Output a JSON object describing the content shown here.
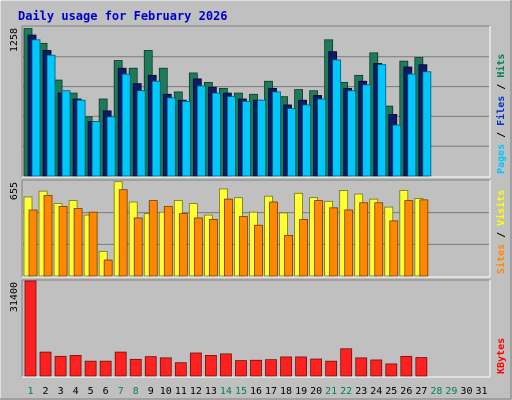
{
  "chart_data": {
    "type": "bar",
    "title": "Daily usage for February 2026",
    "days": [
      "1",
      "2",
      "3",
      "4",
      "5",
      "6",
      "7",
      "8",
      "9",
      "10",
      "11",
      "12",
      "13",
      "14",
      "15",
      "16",
      "17",
      "18",
      "19",
      "20",
      "21",
      "22",
      "23",
      "24",
      "25",
      "26",
      "27",
      "28",
      "29",
      "30",
      "31"
    ],
    "weekend_days": [
      "1",
      "7",
      "8",
      "14",
      "15",
      "21",
      "22",
      "28",
      "29"
    ],
    "panels": [
      {
        "id": "top",
        "max_label": "1258",
        "ylim": [
          0,
          1258
        ],
        "grid": true,
        "legend": [
          {
            "label": "Pages",
            "color": "#00c8ff"
          },
          {
            "label": " / ",
            "color": "#000000"
          },
          {
            "label": "Files",
            "color": "#0033cc"
          },
          {
            "label": " / ",
            "color": "#000000"
          },
          {
            "label": "Hits",
            "color": "#00805c"
          }
        ],
        "series": [
          {
            "name": "Hits",
            "color": "#1f7a5a",
            "values": [
              1245,
              1120,
              810,
              700,
              500,
              650,
              975,
              910,
              1060,
              910,
              710,
              870,
              790,
              740,
              700,
              690,
              800,
              670,
              730,
              720,
              1150,
              790,
              850,
              1040,
              590,
              970,
              1000,
              null,
              null,
              null,
              null
            ]
          },
          {
            "name": "Files",
            "color": "#0d1a66",
            "values": [
              1190,
              1060,
              700,
              650,
              460,
              550,
              910,
              780,
              850,
              690,
              640,
              820,
              750,
              700,
              650,
              640,
              740,
              600,
              640,
              680,
              1050,
              740,
              800,
              950,
              520,
              920,
              940,
              null,
              null,
              null,
              null
            ]
          },
          {
            "name": "Pages",
            "color": "#00c8ff",
            "values": [
              1150,
              1020,
              720,
              640,
              460,
              500,
              860,
              720,
              800,
              660,
              630,
              760,
              700,
              670,
              630,
              640,
              710,
              570,
              600,
              650,
              980,
              720,
              770,
              940,
              430,
              860,
              880,
              null,
              null,
              null,
              null
            ]
          }
        ]
      },
      {
        "id": "middle",
        "max_label": "655",
        "ylim": [
          0,
          655
        ],
        "grid": true,
        "legend": [
          {
            "label": "Sites",
            "color": "#ff8800"
          },
          {
            "label": " / ",
            "color": "#000000"
          },
          {
            "label": "Visits",
            "color": "#ffff00"
          }
        ],
        "series": [
          {
            "name": "Visits",
            "color": "#ffff33",
            "values": [
              545,
              585,
              500,
              520,
              420,
              170,
              650,
              510,
              430,
              440,
              520,
              500,
              420,
              600,
              540,
              440,
              550,
              435,
              570,
              540,
              515,
              590,
              565,
              530,
              475,
              590,
              535,
              null,
              null,
              null,
              null
            ]
          },
          {
            "name": "Sites",
            "color": "#ff8800",
            "values": [
              455,
              555,
              480,
              465,
              440,
              110,
              595,
              400,
              520,
              480,
              430,
              400,
              390,
              530,
              410,
              350,
              510,
              280,
              390,
              520,
              470,
              455,
              505,
              505,
              380,
              520,
              525,
              null,
              null,
              null,
              null
            ]
          }
        ]
      },
      {
        "id": "bottom",
        "max_label": "31400",
        "ylim": [
          0,
          31400
        ],
        "grid": false,
        "legend": [
          {
            "label": "KBytes",
            "color": "#ff0000"
          }
        ],
        "series": [
          {
            "name": "KBytes",
            "color": "#ff2020",
            "values": [
              31400,
              7900,
              6500,
              6800,
              4900,
              4900,
              7900,
              5500,
              6400,
              6000,
              4400,
              7600,
              6800,
              7300,
              5100,
              5200,
              5400,
              6300,
              6300,
              5600,
              4900,
              9000,
              6000,
              5300,
              4000,
              6500,
              6100,
              null,
              null,
              null,
              null
            ]
          }
        ]
      }
    ]
  }
}
